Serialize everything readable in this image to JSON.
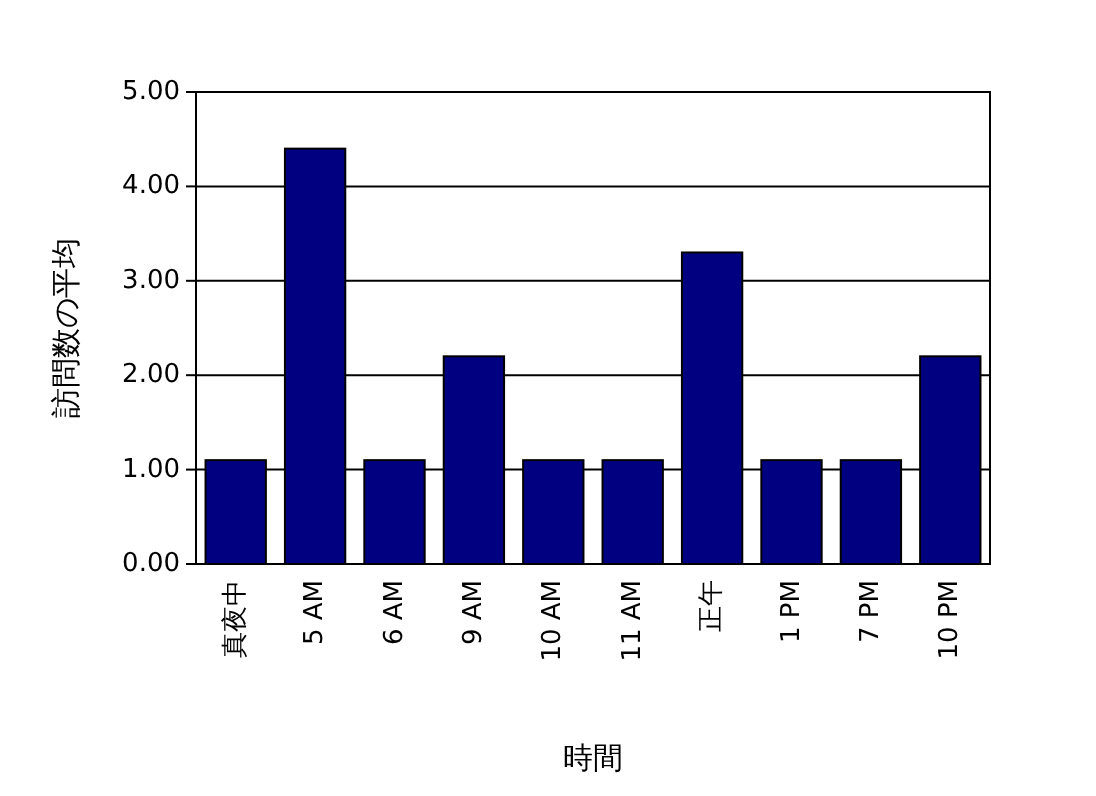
{
  "chart_data": {
    "type": "bar",
    "xlabel": "時間",
    "ylabel": "訪問数の平均",
    "categories": [
      "真夜中",
      "5 AM",
      "6 AM",
      "9 AM",
      "10 AM",
      "11 AM",
      "正午",
      "1 PM",
      "7 PM",
      "10 PM"
    ],
    "values": [
      1.1,
      4.4,
      1.1,
      2.2,
      1.1,
      1.1,
      3.3,
      1.1,
      1.1,
      2.2
    ],
    "color": "#000080",
    "ylim": [
      0,
      5
    ],
    "yticks": [
      {
        "value": 0,
        "label": "0.00"
      },
      {
        "value": 1,
        "label": "1.00"
      },
      {
        "value": 2,
        "label": "2.00"
      },
      {
        "value": 3,
        "label": "3.00"
      },
      {
        "value": 4,
        "label": "4.00"
      },
      {
        "value": 5,
        "label": "5.00"
      }
    ],
    "grid": "y"
  }
}
